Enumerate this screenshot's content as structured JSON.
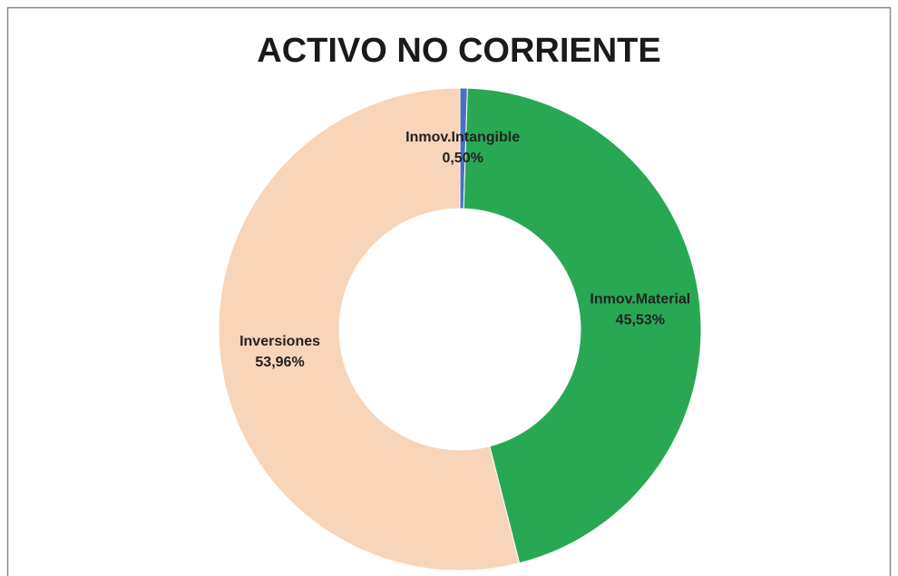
{
  "chart_data": {
    "type": "donut",
    "title": "ACTIVO NO CORRIENTE",
    "categories": [
      "Inmov.Intangible",
      "Inmov.Material",
      "Inversiones"
    ],
    "values": [
      0.5,
      45.53,
      53.96
    ],
    "value_labels": [
      "0,50%",
      "45,53%",
      "53,96%"
    ],
    "colors": [
      "#4a72c0",
      "#28a852",
      "#f8d4b8"
    ]
  }
}
